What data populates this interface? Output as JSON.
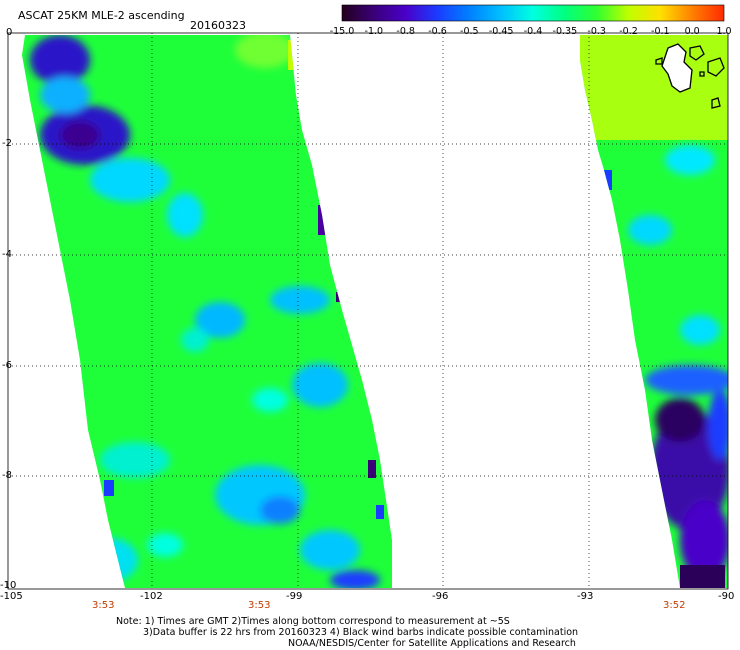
{
  "header": {
    "title": "ASCAT 25KM MLE-2 ascending",
    "date": "20160323"
  },
  "colorbar": {
    "labels": [
      "-15.0",
      "-1.0",
      "-0.8",
      "-0.6",
      "-0.5",
      "-0.45",
      "-0.4",
      "-0.35",
      "-0.3",
      "-0.2",
      "-0.1",
      "0.0",
      "1.0"
    ],
    "colors": [
      "#24001c",
      "#3a0078",
      "#4a00c8",
      "#1a3cff",
      "#0080ff",
      "#00c0ff",
      "#00ffe0",
      "#00ff80",
      "#30ff30",
      "#c0ff00",
      "#ffe000",
      "#ff8000",
      "#ff2a00"
    ]
  },
  "axes": {
    "lat_labels": [
      "0",
      "-2",
      "-4",
      "-6",
      "-8",
      "-10"
    ],
    "lon_labels": [
      "-105",
      "-102",
      "-99",
      "-96",
      "-93",
      "-90"
    ],
    "time_labels": [
      "3:53",
      "3:53",
      "3:52"
    ]
  },
  "notes": {
    "line1": "Note: 1) Times are GMT 2)Times along bottom correspond to measurement at ~5S",
    "line2": "3)Data buffer is 22 hrs from 20160323 4) Black wind barbs indicate possible contamination",
    "line3": "NOAA/NESDIS/Center for Satellite Applications and Research"
  }
}
